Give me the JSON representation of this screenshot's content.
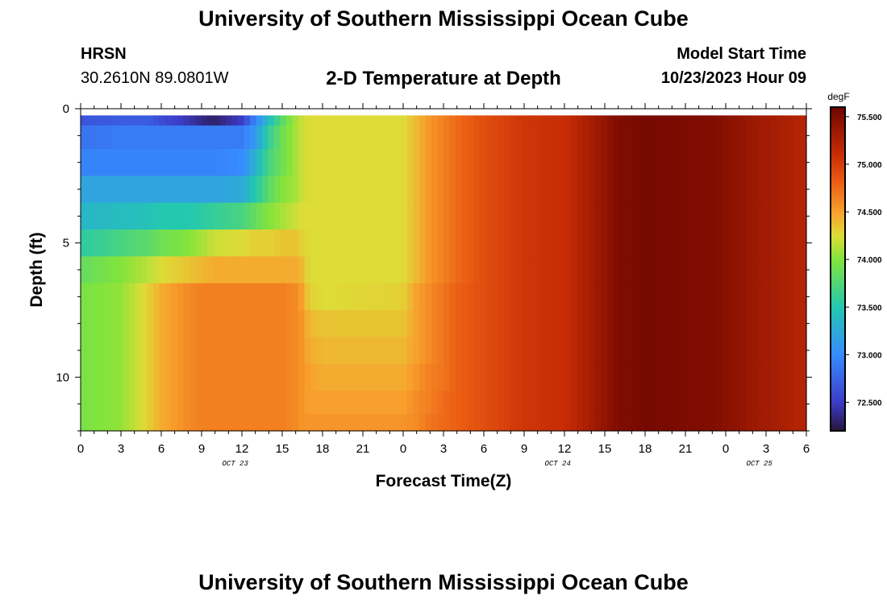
{
  "page": {
    "title": "University of Southern Mississippi Ocean Cube",
    "footer_title": "University of Southern Mississippi Ocean Cube",
    "station": "HRSN",
    "coordinates": "30.2610N  89.0801W",
    "model_start_label": "Model Start Time",
    "model_start_value": "10/23/2023 Hour 09"
  },
  "chart_data": {
    "type": "heatmap",
    "title": "2-D Temperature at Depth",
    "xlabel": "Forecast Time(Z)",
    "ylabel": "Depth (ft)",
    "xlim": [
      0,
      54
    ],
    "ylim": [
      12,
      0
    ],
    "x_tick_labels": [
      "0",
      "3",
      "6",
      "9",
      "12",
      "15",
      "18",
      "21",
      "0",
      "3",
      "6",
      "9",
      "12",
      "15",
      "18",
      "21",
      "0",
      "3",
      "6"
    ],
    "y_ticks": [
      0,
      5,
      10
    ],
    "date_labels": [
      {
        "text": "OCT 23",
        "x": 11.5
      },
      {
        "text": "OCT 24",
        "x": 35.5
      },
      {
        "text": "OCT 25",
        "x": 50.5
      }
    ],
    "colorbar": {
      "unit": "degF",
      "range": [
        72.2,
        75.6
      ],
      "tick_values": [
        72.5,
        73.0,
        73.5,
        74.0,
        74.5,
        75.0,
        75.5
      ],
      "tick_labels": [
        "72.500",
        "73.000",
        "73.500",
        "74.000",
        "74.500",
        "75.000",
        "75.500"
      ]
    },
    "depth_rows": [
      0.25,
      1.0,
      2.0,
      3.0,
      4.0,
      5.0,
      6.0,
      7.0,
      8.0,
      9.0,
      10.0,
      11.0,
      11.75
    ],
    "time_knots": [
      0,
      3,
      5,
      6,
      8,
      9,
      10,
      12,
      13,
      14,
      15,
      16,
      16.5,
      17,
      18,
      24,
      25,
      26,
      27,
      28,
      30,
      33,
      36,
      38,
      40,
      42,
      47,
      50,
      54
    ],
    "temperature_profiles": [
      [
        72.65,
        72.7,
        72.7,
        72.6,
        72.45,
        72.35,
        72.3,
        72.5,
        72.95,
        73.4,
        73.8,
        74.1,
        74.2,
        74.25,
        74.25,
        74.25,
        74.4,
        74.55,
        74.65,
        74.75,
        74.9,
        75.05,
        75.1,
        75.3,
        75.5,
        75.55,
        75.5,
        75.35,
        75.2
      ],
      [
        72.85,
        72.9,
        72.9,
        72.9,
        72.9,
        72.9,
        72.9,
        72.9,
        73.1,
        73.6,
        73.9,
        74.1,
        74.2,
        74.25,
        74.25,
        74.25,
        74.4,
        74.55,
        74.65,
        74.75,
        74.9,
        75.05,
        75.1,
        75.3,
        75.5,
        75.55,
        75.5,
        75.35,
        75.2
      ],
      [
        72.95,
        72.95,
        72.95,
        72.95,
        72.95,
        72.95,
        72.95,
        73.0,
        73.3,
        73.7,
        73.9,
        74.1,
        74.2,
        74.25,
        74.25,
        74.25,
        74.4,
        74.55,
        74.65,
        74.75,
        74.9,
        75.05,
        75.1,
        75.3,
        75.5,
        75.55,
        75.5,
        75.35,
        75.2
      ],
      [
        73.2,
        73.2,
        73.2,
        73.2,
        73.2,
        73.2,
        73.2,
        73.25,
        73.5,
        73.8,
        74.0,
        74.1,
        74.2,
        74.25,
        74.25,
        74.25,
        74.4,
        74.55,
        74.65,
        74.75,
        74.9,
        75.05,
        75.1,
        75.3,
        75.5,
        75.55,
        75.5,
        75.35,
        75.2
      ],
      [
        73.35,
        73.4,
        73.45,
        73.5,
        73.5,
        73.55,
        73.6,
        73.7,
        73.85,
        74.0,
        74.1,
        74.2,
        74.25,
        74.25,
        74.25,
        74.25,
        74.4,
        74.55,
        74.65,
        74.75,
        74.9,
        75.05,
        75.1,
        75.3,
        75.5,
        75.55,
        75.5,
        75.35,
        75.2
      ],
      [
        73.55,
        73.7,
        73.8,
        73.9,
        74.0,
        74.1,
        74.2,
        74.25,
        74.3,
        74.3,
        74.35,
        74.35,
        74.3,
        74.25,
        74.25,
        74.25,
        74.4,
        74.55,
        74.65,
        74.75,
        74.9,
        75.05,
        75.1,
        75.3,
        75.5,
        75.55,
        75.5,
        75.35,
        75.2
      ],
      [
        73.85,
        74.0,
        74.15,
        74.25,
        74.35,
        74.4,
        74.45,
        74.45,
        74.45,
        74.45,
        74.45,
        74.45,
        74.4,
        74.25,
        74.25,
        74.25,
        74.4,
        74.55,
        74.65,
        74.75,
        74.9,
        75.05,
        75.1,
        75.3,
        75.5,
        75.55,
        75.5,
        75.35,
        75.2
      ],
      [
        73.95,
        74.05,
        74.3,
        74.45,
        74.6,
        74.65,
        74.65,
        74.65,
        74.65,
        74.65,
        74.65,
        74.6,
        74.5,
        74.3,
        74.25,
        74.3,
        74.5,
        74.6,
        74.7,
        74.8,
        74.9,
        75.05,
        75.1,
        75.3,
        75.5,
        75.55,
        75.5,
        75.35,
        75.2
      ],
      [
        73.95,
        74.05,
        74.3,
        74.45,
        74.6,
        74.65,
        74.65,
        74.65,
        74.65,
        74.65,
        74.65,
        74.6,
        74.55,
        74.4,
        74.35,
        74.35,
        74.5,
        74.6,
        74.7,
        74.8,
        74.9,
        75.05,
        75.1,
        75.3,
        75.5,
        75.55,
        75.5,
        75.35,
        75.2
      ],
      [
        73.95,
        74.05,
        74.3,
        74.45,
        74.6,
        74.65,
        74.65,
        74.65,
        74.65,
        74.65,
        74.65,
        74.6,
        74.55,
        74.45,
        74.4,
        74.4,
        74.5,
        74.6,
        74.7,
        74.8,
        74.9,
        75.05,
        75.1,
        75.3,
        75.5,
        75.55,
        75.5,
        75.35,
        75.2
      ],
      [
        73.95,
        74.05,
        74.3,
        74.45,
        74.6,
        74.65,
        74.65,
        74.65,
        74.65,
        74.65,
        74.65,
        74.6,
        74.55,
        74.5,
        74.45,
        74.45,
        74.55,
        74.65,
        74.7,
        74.8,
        74.9,
        75.05,
        75.1,
        75.3,
        75.5,
        75.55,
        75.5,
        75.35,
        75.2
      ],
      [
        73.95,
        74.05,
        74.3,
        74.45,
        74.6,
        74.65,
        74.65,
        74.65,
        74.65,
        74.65,
        74.65,
        74.6,
        74.55,
        74.5,
        74.5,
        74.5,
        74.6,
        74.65,
        74.75,
        74.8,
        74.9,
        75.05,
        75.1,
        75.3,
        75.5,
        75.55,
        75.5,
        75.35,
        75.2
      ],
      [
        73.95,
        74.05,
        74.3,
        74.45,
        74.6,
        74.65,
        74.65,
        74.65,
        74.65,
        74.65,
        74.65,
        74.6,
        74.55,
        74.55,
        74.55,
        74.55,
        74.6,
        74.7,
        74.75,
        74.8,
        74.9,
        75.05,
        75.1,
        75.3,
        75.5,
        75.55,
        75.5,
        75.35,
        75.2
      ]
    ]
  }
}
